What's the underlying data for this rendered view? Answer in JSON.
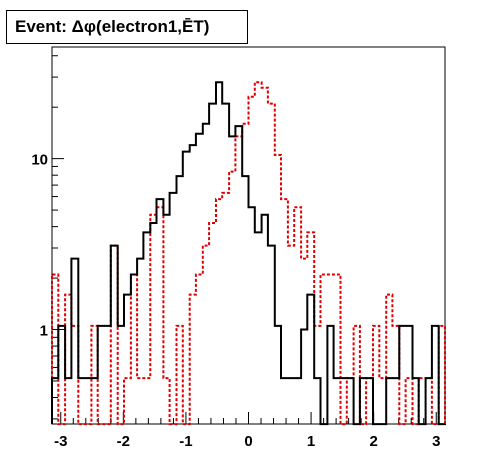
{
  "chart_data": {
    "type": "histogram-step",
    "title": "Event: Δφ(electron1,ĒT)",
    "y_scale": "log",
    "xlim": [
      -3.14,
      3.14
    ],
    "ylim": [
      0.28,
      45
    ],
    "x_ticks": [
      -3,
      -2,
      -1,
      0,
      1,
      2,
      3
    ],
    "x_tick_labels": [
      "-3",
      "-2",
      "-1",
      "0",
      "1",
      "2",
      "3"
    ],
    "y_ticks": [
      1,
      10
    ],
    "y_tick_labels": [
      "1",
      "10"
    ],
    "bin_edges": [
      -3.14,
      -3.04,
      -2.93,
      -2.83,
      -2.72,
      -2.62,
      -2.51,
      -2.41,
      -2.3,
      -2.2,
      -2.09,
      -1.99,
      -1.88,
      -1.78,
      -1.68,
      -1.57,
      -1.47,
      -1.36,
      -1.26,
      -1.15,
      -1.05,
      -0.94,
      -0.84,
      -0.73,
      -0.63,
      -0.52,
      -0.42,
      -0.31,
      -0.21,
      -0.1,
      0.0,
      0.1,
      0.21,
      0.31,
      0.42,
      0.52,
      0.63,
      0.73,
      0.84,
      0.94,
      1.05,
      1.15,
      1.26,
      1.36,
      1.47,
      1.57,
      1.68,
      1.78,
      1.88,
      1.99,
      2.09,
      2.2,
      2.3,
      2.41,
      2.51,
      2.62,
      2.72,
      2.83,
      2.93,
      3.04,
      3.14
    ],
    "series": [
      {
        "color": "#000000",
        "style": "solid",
        "values": [
          0.52,
          1.05,
          0.52,
          2.6,
          0.52,
          0.52,
          0.52,
          1.05,
          1.05,
          3.1,
          1.05,
          1.6,
          2.1,
          2.6,
          3.7,
          4.2,
          5.8,
          4.7,
          6.3,
          7.9,
          11,
          12,
          14,
          16,
          21,
          28,
          21,
          13.5,
          15.5,
          7.9,
          5.2,
          3.7,
          4.7,
          3.1,
          1.05,
          0.52,
          0.52,
          0.52,
          1.0,
          1.6,
          0.52,
          0.25,
          1.05,
          0.52,
          0.52,
          0.52,
          0.25,
          0.52,
          0.52,
          0.25,
          0.25,
          0.52,
          0.52,
          1.05,
          1.05,
          0.52,
          0.25,
          0.52,
          1.05,
          0.25
        ],
        "_unused": null
      }
    ]
  }
}
